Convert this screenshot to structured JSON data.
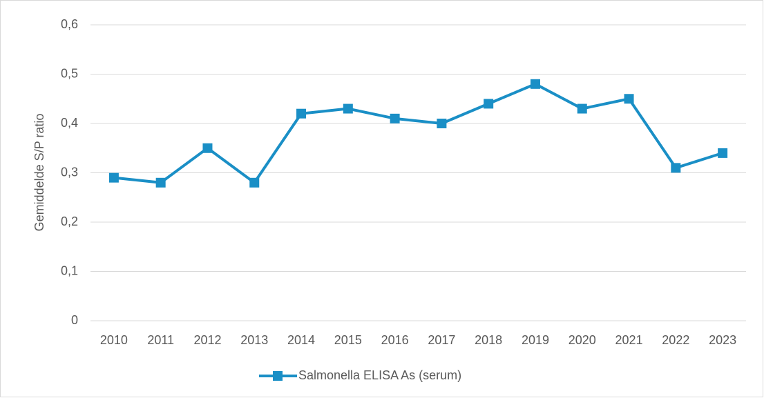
{
  "chart_data": {
    "type": "line",
    "y_label": "Gemiddelde S/P ratio",
    "categories": [
      "2010",
      "2011",
      "2012",
      "2013",
      "2014",
      "2015",
      "2016",
      "2017",
      "2018",
      "2019",
      "2020",
      "2021",
      "2022",
      "2023"
    ],
    "series": [
      {
        "name": "Salmonella ELISA As (serum)",
        "color": "#1a8fc6",
        "values": [
          0.29,
          0.28,
          0.35,
          0.28,
          0.42,
          0.43,
          0.41,
          0.4,
          0.44,
          0.48,
          0.43,
          0.45,
          0.31,
          0.34
        ]
      }
    ],
    "ylim": [
      0,
      0.6
    ],
    "yticks": [
      0,
      {
        "value": 0.1,
        "label": "0,1"
      },
      {
        "value": 0.2,
        "label": "0,2"
      },
      {
        "value": 0.3,
        "label": "0,3"
      },
      {
        "value": 0.4,
        "label": "0,4"
      },
      {
        "value": 0.5,
        "label": "0,5"
      },
      {
        "value": 0.6,
        "label": "0,6"
      }
    ],
    "grid": true,
    "legend": "bottom"
  }
}
